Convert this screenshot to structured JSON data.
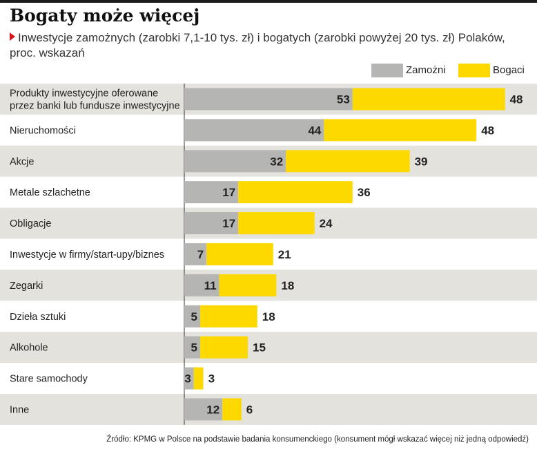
{
  "title": "Bogaty może więcej",
  "subtitle": "Inwestycje zamożnych (zarobki 7,1-10 tys. zł) i bogatych (zarobki powyżej 20 tys. zł) Polaków, proc. wskazań",
  "source": "Źródło: KPMG w Polsce na podstawie badania konsumenckiego (konsument mógł wskazać więcej niż jedną odpowiedź)",
  "colors": {
    "zamozni": "#b5b5b3",
    "bogaci": "#fdd900",
    "row_even": "#e4e2dc",
    "row_odd": "#ffffff",
    "marker": "#d7141a"
  },
  "chart_data": {
    "type": "bar",
    "orientation": "horizontal",
    "stacked": true,
    "categories": [
      [
        "Produkty inwestycyjne oferowane",
        "przez banki lub fundusze inwestycyjne"
      ],
      [
        "Nieruchomości"
      ],
      [
        "Akcje"
      ],
      [
        "Metale szlachetne"
      ],
      [
        "Obligacje"
      ],
      [
        "Inwestycje w firmy/start-upy/biznes"
      ],
      [
        "Zegarki"
      ],
      [
        "Dzieła sztuki"
      ],
      [
        "Alkohole"
      ],
      [
        "Stare samochody"
      ],
      [
        "Inne"
      ]
    ],
    "series": [
      {
        "name": "Zamożni",
        "values": [
          53,
          44,
          32,
          17,
          17,
          7,
          11,
          5,
          5,
          3,
          12
        ]
      },
      {
        "name": "Bogaci",
        "values": [
          48,
          48,
          39,
          36,
          24,
          21,
          18,
          18,
          15,
          3,
          6
        ]
      }
    ],
    "legend_position": "top-right",
    "grid": false
  }
}
